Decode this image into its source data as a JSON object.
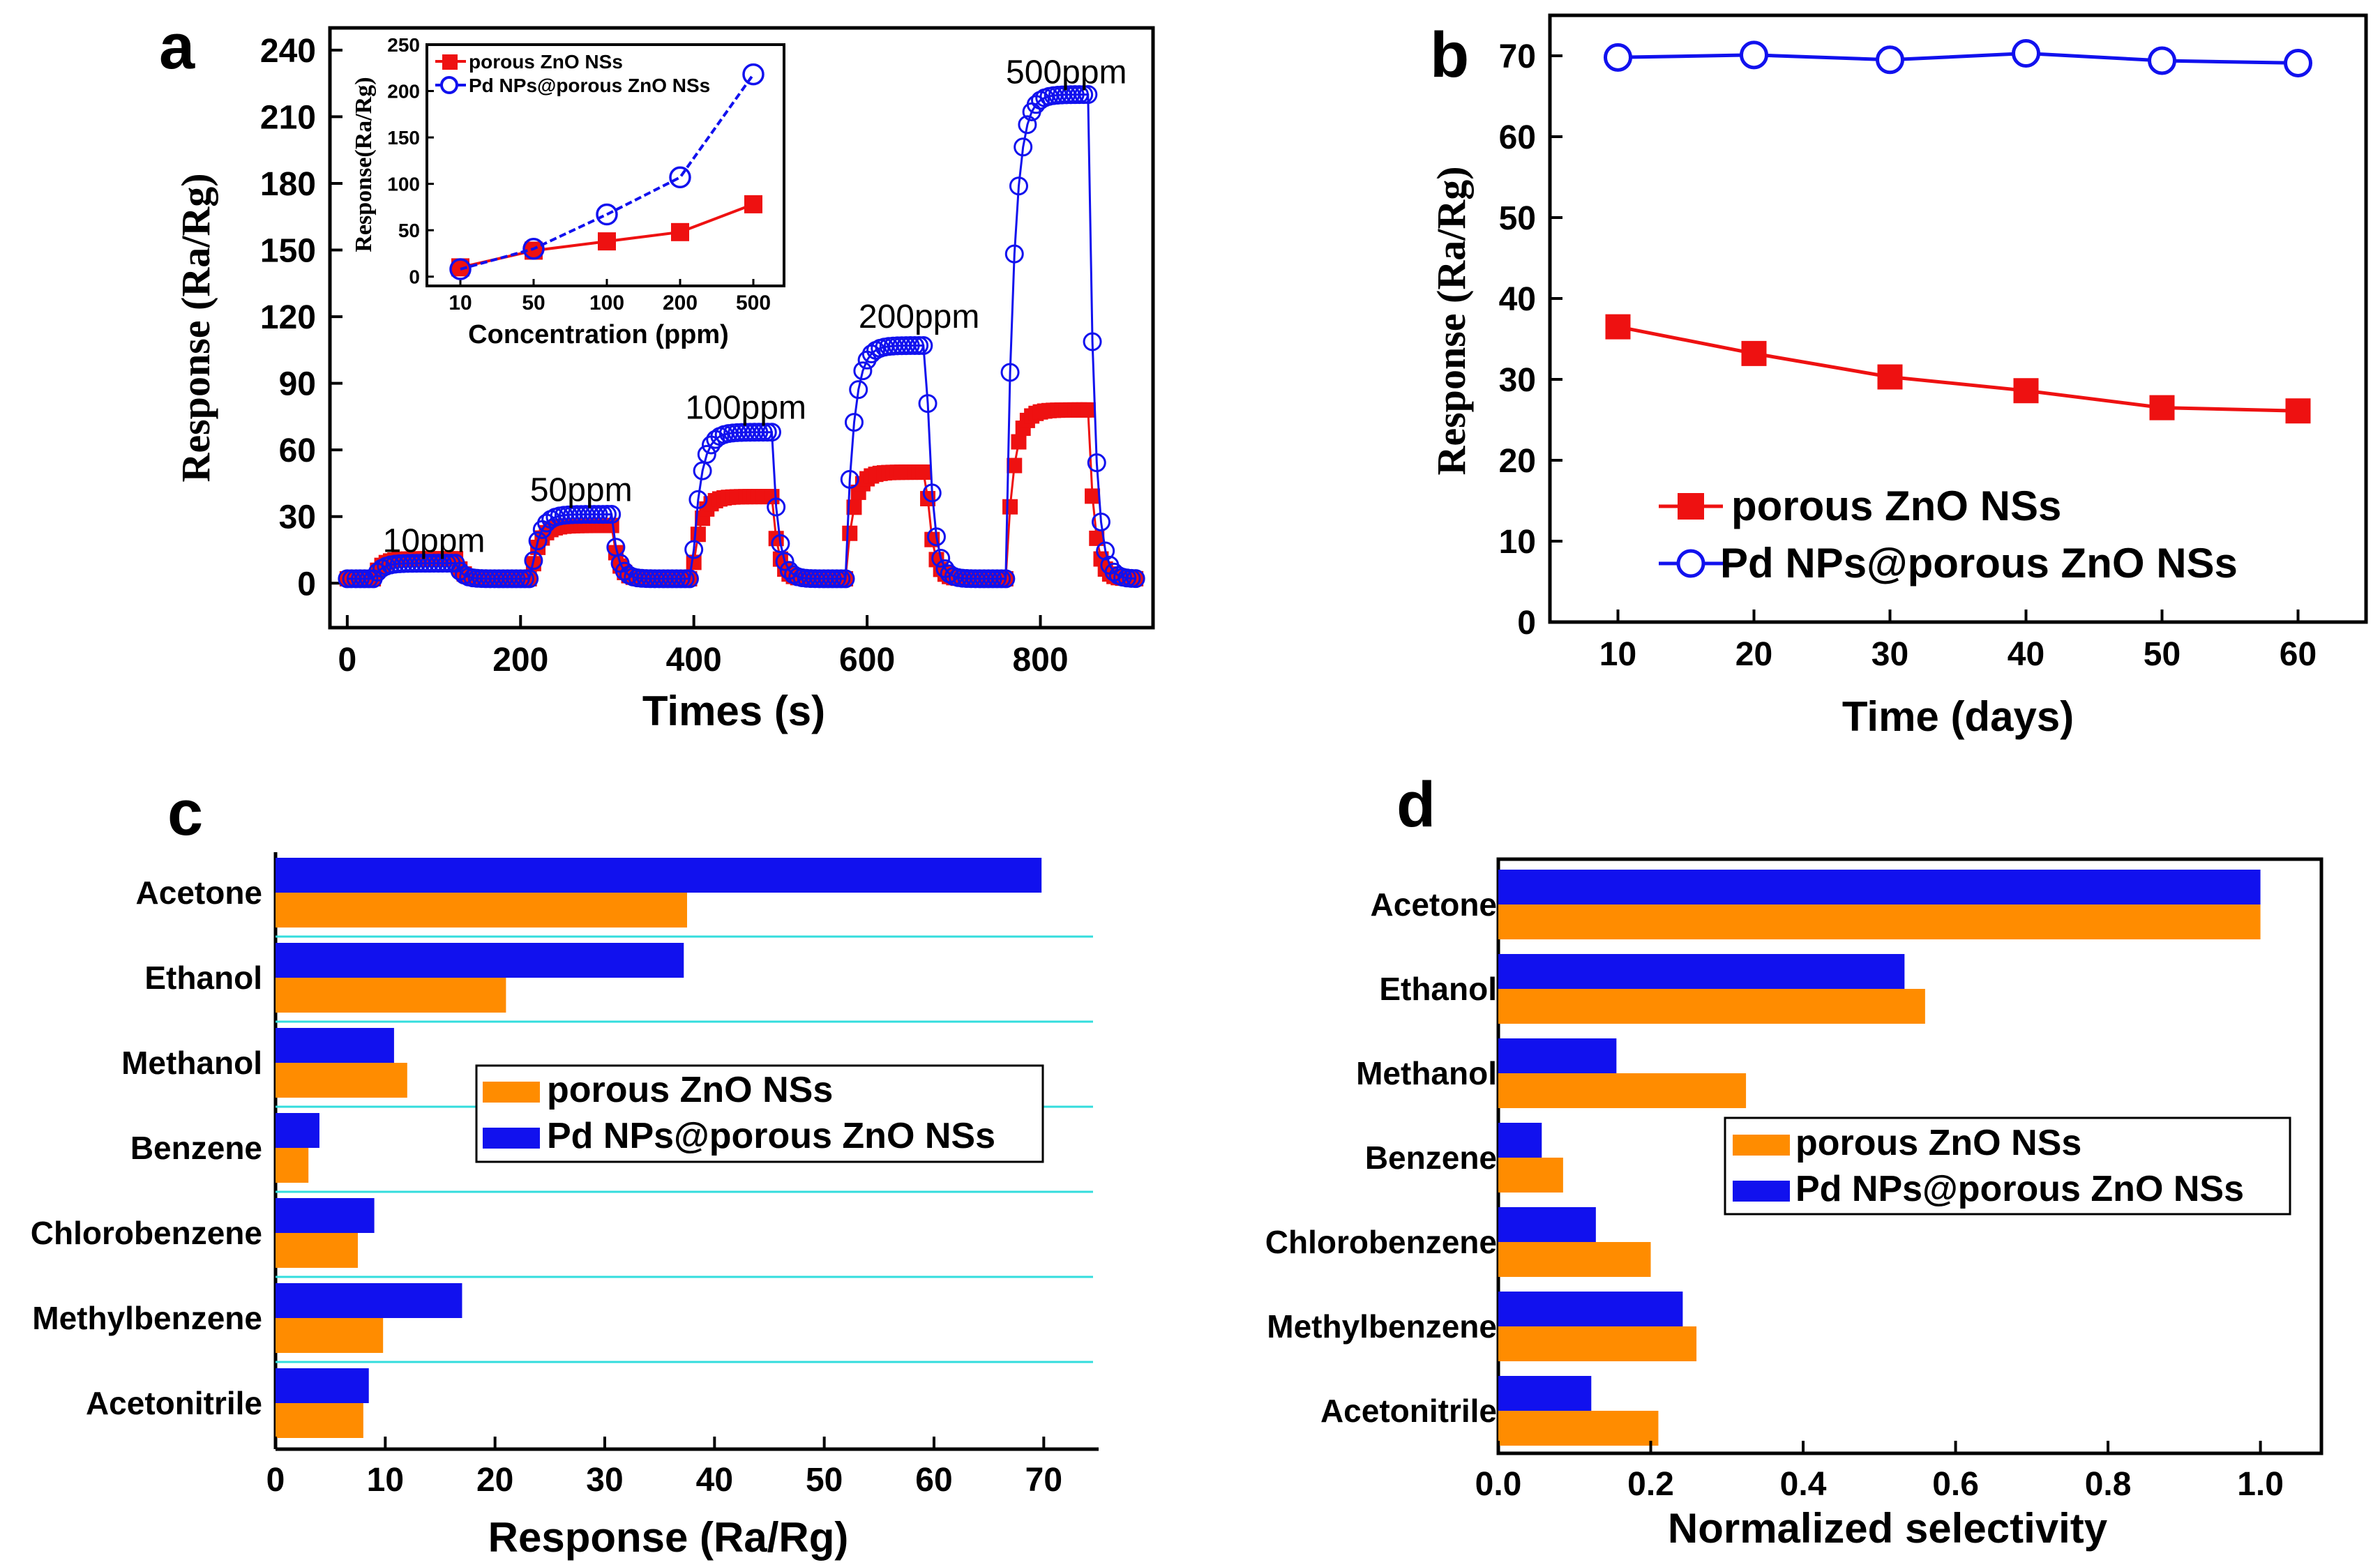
{
  "colors": {
    "red": "#ee1111",
    "blue": "#1111ee",
    "orange": "#ff8c00",
    "cyan": "#33dddd",
    "axis": "#000000"
  },
  "chart_data": [
    {
      "id": "a",
      "panel_label": "a",
      "type": "line",
      "xlabel": "Times (s)",
      "ylabel": "Response (Ra/Rg)",
      "xlim": [
        -20,
        930
      ],
      "ylim": [
        -20,
        250
      ],
      "xticks": [
        0,
        200,
        400,
        600,
        800
      ],
      "yticks": [
        0,
        30,
        60,
        90,
        120,
        150,
        180,
        210,
        240
      ],
      "annotations": [
        {
          "text": "10ppm",
          "x": 100,
          "y": 14
        },
        {
          "text": "50ppm",
          "x": 270,
          "y": 37
        },
        {
          "text": "100ppm",
          "x": 460,
          "y": 74
        },
        {
          "text": "200ppm",
          "x": 660,
          "y": 115
        },
        {
          "text": "500ppm",
          "x": 830,
          "y": 225
        }
      ],
      "series": [
        {
          "name": "porous ZnO NSs",
          "color": "red",
          "marker": "square",
          "cycles": [
            {
              "on": 30,
              "off": 125,
              "level": 11
            },
            {
              "on": 212,
              "off": 305,
              "level": 26
            },
            {
              "on": 398,
              "off": 490,
              "level": 39
            },
            {
              "on": 575,
              "off": 668,
              "level": 50
            },
            {
              "on": 760,
              "off": 855,
              "level": 78
            }
          ]
        },
        {
          "name": "Pd NPs@porous ZnO NSs",
          "color": "blue",
          "marker": "circle",
          "cycles": [
            {
              "on": 30,
              "off": 125,
              "level": 9
            },
            {
              "on": 212,
              "off": 305,
              "level": 31
            },
            {
              "on": 398,
              "off": 490,
              "level": 68
            },
            {
              "on": 575,
              "off": 668,
              "level": 107
            },
            {
              "on": 760,
              "off": 855,
              "level": 220
            }
          ]
        }
      ],
      "inset": {
        "type": "line",
        "xlabel": "Concentration (ppm)",
        "ylabel": "Response(Ra/Rg)",
        "categories": [
          "10",
          "50",
          "100",
          "200",
          "500"
        ],
        "ylim": [
          -10,
          250
        ],
        "yticks": [
          0,
          50,
          100,
          150,
          200,
          250
        ],
        "legend": [
          "porous ZnO NSs",
          "Pd NPs@porous ZnO NSs"
        ],
        "series": [
          {
            "name": "porous ZnO NSs",
            "color": "red",
            "marker": "square",
            "values": [
              10,
              28,
              38,
              48,
              78
            ]
          },
          {
            "name": "Pd NPs@porous ZnO NSs",
            "color": "blue",
            "marker": "circle",
            "values": [
              8,
              30,
              67,
              107,
              218
            ]
          }
        ]
      }
    },
    {
      "id": "b",
      "panel_label": "b",
      "type": "line",
      "xlabel": "Time (days)",
      "ylabel": "Response (Ra/Rg)",
      "xlim": [
        5,
        65
      ],
      "ylim": [
        0,
        75
      ],
      "xticks": [
        10,
        20,
        30,
        40,
        50,
        60
      ],
      "yticks": [
        0,
        10,
        20,
        30,
        40,
        50,
        60,
        70
      ],
      "x": [
        10,
        20,
        30,
        40,
        50,
        60
      ],
      "legend": [
        "porous ZnO NSs",
        "Pd NPs@porous ZnO NSs"
      ],
      "series": [
        {
          "name": "porous ZnO NSs",
          "color": "red",
          "marker": "square",
          "values": [
            36.5,
            33.2,
            30.3,
            28.6,
            26.5,
            26.1
          ]
        },
        {
          "name": "Pd NPs@porous ZnO NSs",
          "color": "blue",
          "marker": "circle",
          "values": [
            69.8,
            70.1,
            69.5,
            70.3,
            69.4,
            69.1
          ]
        }
      ]
    },
    {
      "id": "c",
      "panel_label": "c",
      "type": "bar",
      "orientation": "horizontal",
      "xlabel": "Response (Ra/Rg)",
      "xlim": [
        0,
        75
      ],
      "xticks": [
        0,
        10,
        20,
        30,
        40,
        50,
        60,
        70
      ],
      "categories": [
        "Acetone",
        "Ethanol",
        "Methanol",
        "Benzene",
        "Chlorobenzene",
        "Methylbenzene",
        "Acetonitrile"
      ],
      "legend": [
        "porous ZnO NSs",
        "Pd NPs@porous ZnO NSs"
      ],
      "series": [
        {
          "name": "porous ZnO NSs",
          "color": "orange",
          "values": [
            37.5,
            21,
            12,
            3,
            7.5,
            9.8,
            8
          ]
        },
        {
          "name": "Pd NPs@porous ZnO NSs",
          "color": "blue",
          "values": [
            69.8,
            37.2,
            10.8,
            4,
            9,
            17,
            8.5
          ]
        }
      ]
    },
    {
      "id": "d",
      "panel_label": "d",
      "type": "bar",
      "orientation": "horizontal",
      "xlabel": "Normalized selectivity",
      "xlim": [
        0,
        1.08
      ],
      "xticks": [
        0.0,
        0.2,
        0.4,
        0.6,
        0.8,
        1.0
      ],
      "tick_format": 1,
      "categories": [
        "Acetone",
        "Ethanol",
        "Methanol",
        "Benzene",
        "Chlorobenzene",
        "Methylbenzene",
        "Acetonitrile"
      ],
      "legend": [
        "porous ZnO NSs",
        "Pd NPs@porous ZnO NSs"
      ],
      "series": [
        {
          "name": "porous ZnO NSs",
          "color": "orange",
          "values": [
            1.0,
            0.56,
            0.325,
            0.085,
            0.2,
            0.26,
            0.21
          ]
        },
        {
          "name": "Pd NPs@porous ZnO NSs",
          "color": "blue",
          "values": [
            1.0,
            0.533,
            0.155,
            0.057,
            0.128,
            0.242,
            0.122
          ]
        }
      ]
    }
  ]
}
